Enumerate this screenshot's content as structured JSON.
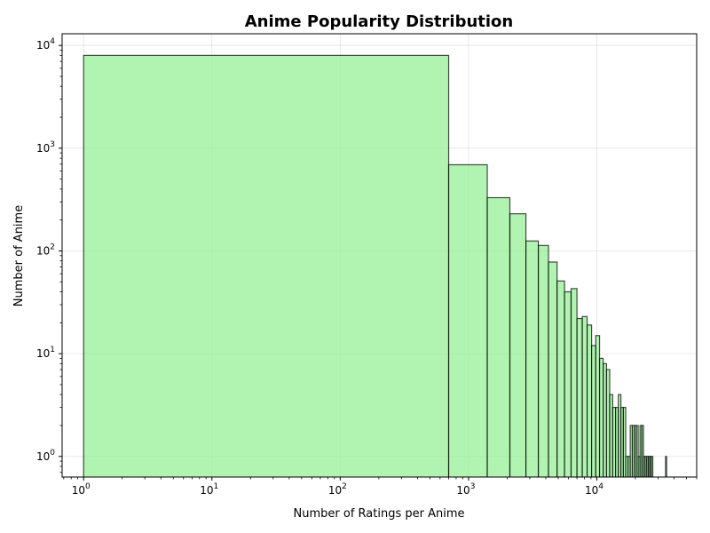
{
  "chart_data": {
    "type": "bar",
    "title": "Anime Popularity Distribution",
    "xlabel": "Number of Ratings per Anime",
    "ylabel": "Number of Anime",
    "x_scale": "log",
    "y_scale": "log",
    "xlim": [
      0.68,
      60000
    ],
    "ylim": [
      0.63,
      13000
    ],
    "x_ticks": [
      {
        "base": "10",
        "exp": "0",
        "value": 1
      },
      {
        "base": "10",
        "exp": "1",
        "value": 10
      },
      {
        "base": "10",
        "exp": "2",
        "value": 100
      },
      {
        "base": "10",
        "exp": "3",
        "value": 1000
      },
      {
        "base": "10",
        "exp": "4",
        "value": 10000
      }
    ],
    "y_ticks": [
      {
        "base": "10",
        "exp": "0",
        "value": 1
      },
      {
        "base": "10",
        "exp": "1",
        "value": 10
      },
      {
        "base": "10",
        "exp": "2",
        "value": 100
      },
      {
        "base": "10",
        "exp": "3",
        "value": 1000
      },
      {
        "base": "10",
        "exp": "4",
        "value": 10000
      }
    ],
    "grid": true,
    "bar_color": "#90ee90",
    "edge_color": "#000000",
    "bins": [
      {
        "x0": 1,
        "x1": 700,
        "count": 8000
      },
      {
        "x0": 700,
        "x1": 1400,
        "count": 690
      },
      {
        "x0": 1400,
        "x1": 2100,
        "count": 330
      },
      {
        "x0": 2100,
        "x1": 2800,
        "count": 230
      },
      {
        "x0": 2800,
        "x1": 3500,
        "count": 125
      },
      {
        "x0": 3500,
        "x1": 4200,
        "count": 113
      },
      {
        "x0": 4200,
        "x1": 4900,
        "count": 78
      },
      {
        "x0": 4900,
        "x1": 5600,
        "count": 51
      },
      {
        "x0": 5600,
        "x1": 6300,
        "count": 40
      },
      {
        "x0": 6300,
        "x1": 7000,
        "count": 43
      },
      {
        "x0": 7000,
        "x1": 7700,
        "count": 22
      },
      {
        "x0": 7700,
        "x1": 8400,
        "count": 23
      },
      {
        "x0": 8400,
        "x1": 9100,
        "count": 19
      },
      {
        "x0": 9100,
        "x1": 9800,
        "count": 12
      },
      {
        "x0": 9800,
        "x1": 10500,
        "count": 15
      },
      {
        "x0": 10500,
        "x1": 11200,
        "count": 9
      },
      {
        "x0": 11200,
        "x1": 11900,
        "count": 8
      },
      {
        "x0": 11900,
        "x1": 12600,
        "count": 7
      },
      {
        "x0": 12600,
        "x1": 13300,
        "count": 4
      },
      {
        "x0": 13300,
        "x1": 14000,
        "count": 3
      },
      {
        "x0": 14000,
        "x1": 14700,
        "count": 3
      },
      {
        "x0": 14700,
        "x1": 15400,
        "count": 4
      },
      {
        "x0": 15400,
        "x1": 16100,
        "count": 3
      },
      {
        "x0": 16100,
        "x1": 16800,
        "count": 3
      },
      {
        "x0": 16800,
        "x1": 17500,
        "count": 1
      },
      {
        "x0": 17500,
        "x1": 18200,
        "count": 1
      },
      {
        "x0": 18200,
        "x1": 18900,
        "count": 2
      },
      {
        "x0": 18900,
        "x1": 19600,
        "count": 2
      },
      {
        "x0": 19600,
        "x1": 20300,
        "count": 2
      },
      {
        "x0": 20300,
        "x1": 21000,
        "count": 2
      },
      {
        "x0": 21000,
        "x1": 21700,
        "count": 1
      },
      {
        "x0": 21700,
        "x1": 22400,
        "count": 2
      },
      {
        "x0": 22400,
        "x1": 23100,
        "count": 2
      },
      {
        "x0": 23100,
        "x1": 23800,
        "count": 1
      },
      {
        "x0": 23800,
        "x1": 24500,
        "count": 1
      },
      {
        "x0": 24500,
        "x1": 25200,
        "count": 1
      },
      {
        "x0": 25200,
        "x1": 25900,
        "count": 1
      },
      {
        "x0": 25900,
        "x1": 26600,
        "count": 1
      },
      {
        "x0": 26600,
        "x1": 27300,
        "count": 1
      },
      {
        "x0": 34300,
        "x1": 35000,
        "count": 1
      }
    ]
  }
}
